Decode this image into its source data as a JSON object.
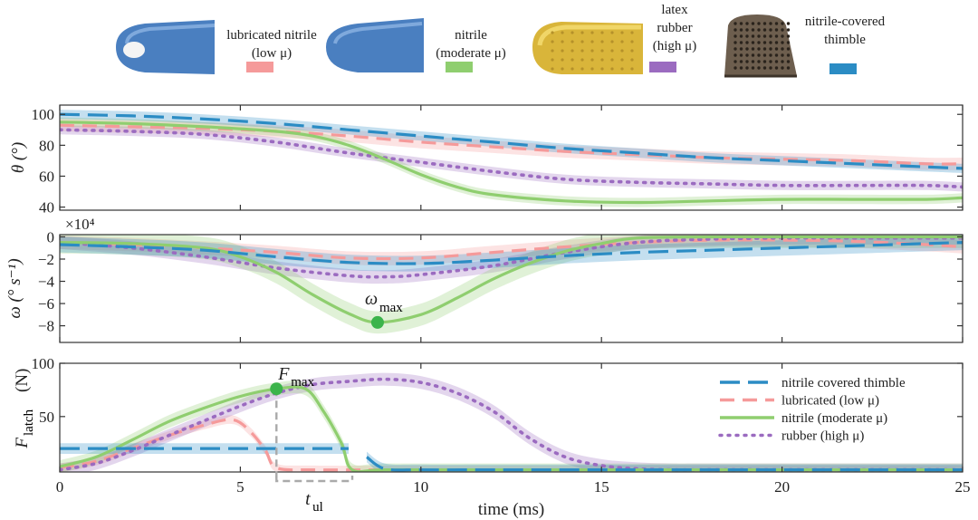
{
  "colors": {
    "thimble": "#2b8cc4",
    "lubricated": "#f59a9a",
    "nitrile": "#8fce6f",
    "rubber": "#9b6bc0",
    "marker": "#3cb44b"
  },
  "samples": [
    {
      "name": "lubricated-nitrile",
      "label_lines": [
        "lubricated nitrile",
        "(low μ)"
      ],
      "color": "#f59a9a",
      "image": "blue-finger-tip-with-white-lubricant"
    },
    {
      "name": "nitrile",
      "label_lines": [
        "nitrile",
        "(moderate μ)"
      ],
      "color": "#8fce6f",
      "image": "blue-finger-tip"
    },
    {
      "name": "latex-rubber",
      "label_lines": [
        "latex",
        "rubber",
        "(high μ)"
      ],
      "color": "#9b6bc0",
      "image": "yellow-textured-finger-cot"
    },
    {
      "name": "nitrile-covered-thimble",
      "label_lines": [
        "nitrile-covered",
        "thimble"
      ],
      "color": "#2b8cc4",
      "image": "metal-perforated-thimble"
    }
  ],
  "chart_data": [
    {
      "type": "line",
      "panel": "theta",
      "ylabel": "θ (°)",
      "xlim": [
        0,
        25
      ],
      "ylim": [
        38,
        106
      ],
      "yticks": [
        "40",
        "60",
        "80",
        "100"
      ],
      "ytick_values": [
        40,
        60,
        80,
        100
      ],
      "series": [
        {
          "key": "thimble",
          "x": [
            0,
            2,
            4,
            6,
            8,
            10,
            12,
            14,
            16,
            18,
            20,
            22,
            24,
            25
          ],
          "y": [
            100,
            99,
            97,
            94,
            90,
            86,
            82,
            78,
            75,
            72,
            70,
            68,
            66,
            65
          ],
          "band": 3
        },
        {
          "key": "lubricated",
          "x": [
            0,
            2,
            4,
            6,
            8,
            10,
            12,
            14,
            16,
            18,
            20,
            22,
            24,
            25
          ],
          "y": [
            93,
            92,
            91,
            89,
            86,
            82,
            79,
            76,
            74,
            72,
            71,
            70,
            68,
            68
          ],
          "band": 4
        },
        {
          "key": "nitrile",
          "x": [
            0,
            2,
            4,
            6,
            7,
            8,
            9,
            10,
            11,
            12,
            14,
            16,
            18,
            20,
            22,
            24,
            25
          ],
          "y": [
            95,
            94,
            92,
            89,
            86,
            80,
            71,
            61,
            53,
            48,
            44,
            43,
            44,
            45,
            45,
            45,
            46
          ],
          "band": 3
        },
        {
          "key": "rubber",
          "x": [
            0,
            2,
            4,
            6,
            8,
            10,
            12,
            14,
            16,
            18,
            20,
            22,
            24,
            25
          ],
          "y": [
            90,
            89,
            87,
            82,
            75,
            69,
            63,
            58,
            56,
            55,
            54,
            54,
            54,
            53
          ],
          "band": 3
        }
      ]
    },
    {
      "type": "line",
      "panel": "omega",
      "ylabel": "ω (° s⁻¹)",
      "yscale_label": "×10⁴",
      "xlim": [
        0,
        25
      ],
      "ylim": [
        -9.5,
        0.2
      ],
      "yticks": [
        "0",
        "−2",
        "−4",
        "−6",
        "−8"
      ],
      "ytick_values": [
        0,
        -2,
        -4,
        -6,
        -8
      ],
      "series": [
        {
          "key": "thimble",
          "x": [
            0,
            2,
            4,
            6,
            8,
            10,
            12,
            14,
            16,
            18,
            20,
            22,
            24,
            25
          ],
          "y": [
            -0.7,
            -0.9,
            -1.2,
            -1.8,
            -2.3,
            -2.4,
            -2.1,
            -1.7,
            -1.4,
            -1.2,
            -1.0,
            -0.8,
            -0.6,
            -0.5
          ],
          "band": 0.7
        },
        {
          "key": "lubricated",
          "x": [
            0,
            2,
            4,
            6,
            8,
            10,
            12,
            14,
            16,
            18,
            20,
            22,
            24,
            25
          ],
          "y": [
            -0.5,
            -0.7,
            -1.0,
            -1.4,
            -1.9,
            -1.9,
            -1.4,
            -0.9,
            -0.5,
            -0.3,
            -0.3,
            -0.4,
            -0.7,
            -0.9
          ],
          "band": 0.6
        },
        {
          "key": "nitrile",
          "x": [
            0,
            2,
            4,
            5,
            6,
            7,
            8,
            8.8,
            10,
            11,
            12,
            13,
            14,
            15,
            16,
            18,
            20,
            22,
            25
          ],
          "y": [
            -0.5,
            -0.6,
            -1.0,
            -1.8,
            -3.2,
            -5.2,
            -6.9,
            -7.7,
            -7.0,
            -5.5,
            -3.8,
            -2.4,
            -1.3,
            -0.6,
            -0.1,
            0,
            0,
            0,
            0
          ],
          "band": 1.0
        },
        {
          "key": "rubber",
          "x": [
            0,
            2,
            4,
            6,
            8,
            9,
            10,
            12,
            14,
            16,
            18,
            20,
            22,
            25
          ],
          "y": [
            -0.5,
            -1.0,
            -1.8,
            -2.8,
            -3.5,
            -3.6,
            -3.4,
            -2.6,
            -1.4,
            -0.5,
            -0.2,
            -0.1,
            -0.1,
            -0.1
          ],
          "band": 0.6
        }
      ],
      "annotation": {
        "label": "ω",
        "subscript": "max",
        "x": 8.8,
        "y": -7.7
      }
    },
    {
      "type": "line",
      "panel": "force",
      "ylabel": "F",
      "ylabel_sub": "latch",
      "ylabel_unit": "(N)",
      "xlabel": "time (ms)",
      "xlim": [
        0,
        25
      ],
      "ylim": [
        -2,
        100
      ],
      "xticks": [
        "0",
        "5",
        "10",
        "15",
        "20",
        "25"
      ],
      "xtick_values": [
        0,
        5,
        10,
        15,
        20,
        25
      ],
      "yticks": [
        "50",
        "100"
      ],
      "ytick_values": [
        50,
        100
      ],
      "series": [
        {
          "key": "thimble",
          "segments": [
            {
              "x": [
                0,
                1,
                2,
                3,
                4,
                5,
                6,
                7,
                8
              ],
              "y": [
                20,
                20,
                20,
                20,
                20,
                20,
                20,
                20,
                20
              ]
            },
            {
              "x": [
                8.5,
                9,
                10,
                12,
                15,
                20,
                25
              ],
              "y": [
                12,
                1,
                0,
                0,
                0,
                0,
                0
              ]
            }
          ],
          "band": 5
        },
        {
          "key": "lubricated",
          "segments": [
            {
              "x": [
                0,
                1,
                2,
                3,
                4,
                4.8,
                5.3,
                5.7,
                6,
                7,
                10,
                15,
                20,
                25
              ],
              "y": [
                2,
                8,
                20,
                32,
                42,
                47,
                35,
                18,
                2,
                0,
                0,
                0,
                0,
                0
              ]
            }
          ],
          "band": 4
        },
        {
          "key": "nitrile",
          "segments": [
            {
              "x": [
                0,
                1,
                2,
                3,
                4,
                5,
                6,
                6.8,
                7.3,
                7.8,
                8.1,
                9,
                12,
                15,
                20,
                25
              ],
              "y": [
                3,
                12,
                28,
                45,
                58,
                69,
                76,
                76,
                55,
                25,
                0,
                0,
                0,
                0,
                0,
                0
              ]
            }
          ],
          "band": 6
        },
        {
          "key": "rubber",
          "segments": [
            {
              "x": [
                0,
                1,
                2,
                3,
                4,
                5,
                6,
                7,
                8,
                9,
                10,
                11,
                12,
                13,
                14,
                15,
                16,
                17,
                18,
                20,
                25
              ],
              "y": [
                0,
                6,
                18,
                32,
                46,
                60,
                72,
                80,
                83,
                85,
                82,
                72,
                55,
                30,
                12,
                4,
                1,
                0,
                0,
                0,
                0
              ]
            }
          ],
          "band": 6
        }
      ],
      "annotation": {
        "label": "F",
        "subscript": "max",
        "x": 6,
        "y": 76
      },
      "tul": {
        "label": "t",
        "subscript": "ul",
        "x_start": 6,
        "x_end": 8.1
      },
      "legend": [
        {
          "key": "thimble",
          "label": "nitrile covered thimble",
          "style": "dashed"
        },
        {
          "key": "lubricated",
          "label": "lubricated (low μ)",
          "style": "dashed"
        },
        {
          "key": "nitrile",
          "label": "nitrile (moderate μ)",
          "style": "solid"
        },
        {
          "key": "rubber",
          "label": "rubber (high μ)",
          "style": "dotted"
        }
      ]
    }
  ]
}
